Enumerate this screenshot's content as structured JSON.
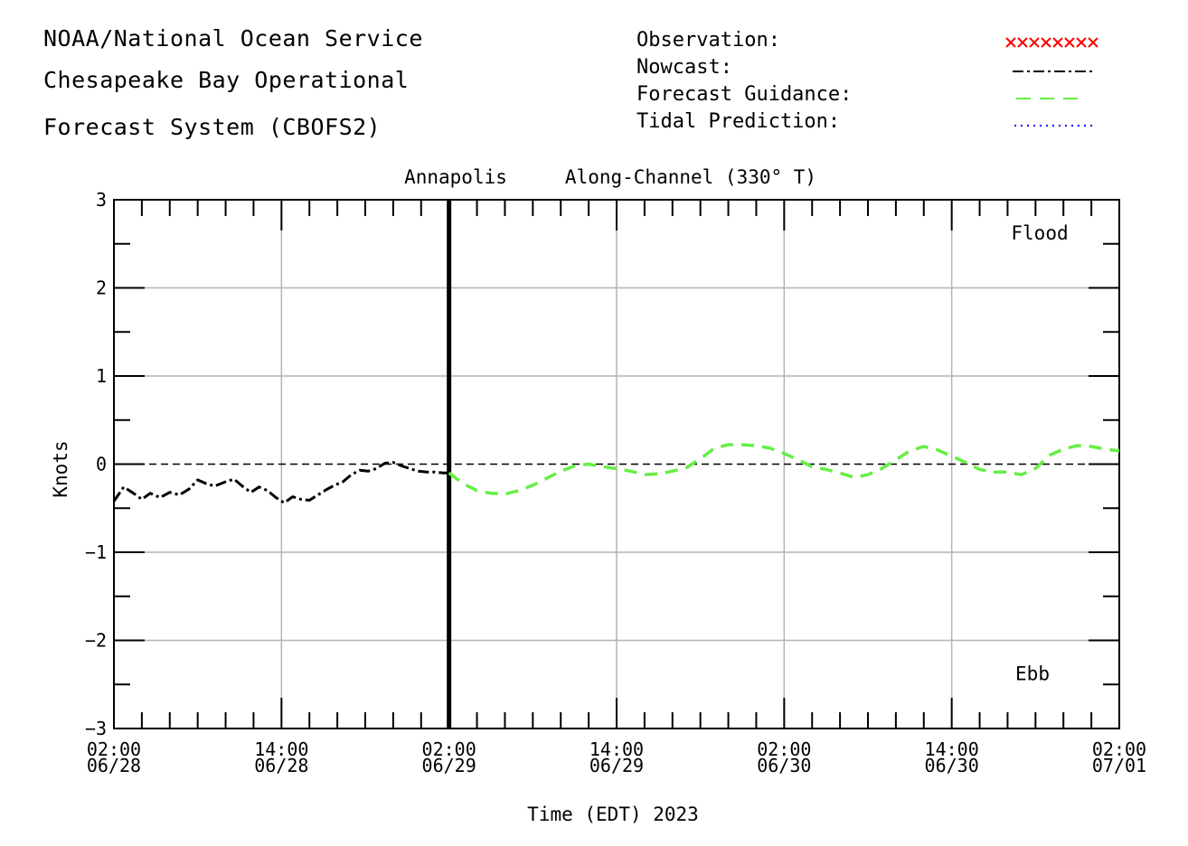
{
  "header": {
    "line1": "NOAA/National Ocean Service",
    "line2": "Chesapeake Bay Operational",
    "line3": "Forecast System (CBOFS2)"
  },
  "legend": [
    {
      "label": "Observation:",
      "style": "cross",
      "color": "#ff0000"
    },
    {
      "label": "Nowcast:",
      "style": "dash-dot",
      "color": "#000000"
    },
    {
      "label": "Forecast Guidance:",
      "style": "dashed",
      "color": "#66ee44"
    },
    {
      "label": "Tidal Prediction:",
      "style": "dotted",
      "color": "#0000ff"
    }
  ],
  "chart_data": {
    "type": "line",
    "title": "Annapolis",
    "subtitle": "Along-Channel (330° T)",
    "xlabel": "Time (EDT) 2023",
    "ylabel": "Knots",
    "ylim": [
      -3,
      3
    ],
    "xlim_hours": [
      0,
      72
    ],
    "x_unit": "hours after 02:00 06/28",
    "x_ticks": [
      {
        "hour": 0,
        "time": "02:00",
        "date": "06/28"
      },
      {
        "hour": 12,
        "time": "14:00",
        "date": "06/28"
      },
      {
        "hour": 24,
        "time": "02:00",
        "date": "06/29"
      },
      {
        "hour": 36,
        "time": "14:00",
        "date": "06/29"
      },
      {
        "hour": 48,
        "time": "02:00",
        "date": "06/30"
      },
      {
        "hour": 60,
        "time": "14:00",
        "date": "06/30"
      },
      {
        "hour": 72,
        "time": "02:00",
        "date": "07/01"
      }
    ],
    "y_ticks": [
      3,
      2,
      1,
      0,
      -1,
      -2,
      -3
    ],
    "y_tick_labels": [
      "3",
      "2",
      "1",
      "0",
      "−1",
      "−2",
      "−3"
    ],
    "grid": true,
    "annotations": {
      "top": "Flood",
      "bottom": "Ebb"
    },
    "nowcast_forecast_boundary_hour": 24,
    "series": [
      {
        "name": "Nowcast",
        "color": "#000000",
        "x": [
          0,
          0.7,
          1.4,
          2.0,
          2.6,
          3.3,
          4.0,
          4.7,
          5.4,
          6.0,
          6.6,
          7.2,
          8.0,
          8.6,
          9.2,
          9.8,
          10.4,
          11.0,
          11.6,
          12.2,
          12.8,
          13.4,
          14.0,
          14.6,
          15.2,
          15.8,
          16.4,
          17.0,
          17.6,
          18.2,
          18.8,
          19.4,
          20.0,
          20.6,
          21.2,
          21.8,
          22.4,
          23.0,
          23.6,
          24.0
        ],
        "values": [
          -0.42,
          -0.26,
          -0.33,
          -0.4,
          -0.33,
          -0.38,
          -0.32,
          -0.35,
          -0.28,
          -0.18,
          -0.22,
          -0.25,
          -0.2,
          -0.17,
          -0.25,
          -0.32,
          -0.26,
          -0.3,
          -0.38,
          -0.44,
          -0.37,
          -0.4,
          -0.41,
          -0.35,
          -0.29,
          -0.24,
          -0.2,
          -0.12,
          -0.07,
          -0.08,
          -0.05,
          0.01,
          0.02,
          -0.02,
          -0.05,
          -0.08,
          -0.09,
          -0.09,
          -0.1,
          -0.1
        ]
      },
      {
        "name": "Forecast Guidance",
        "color": "#66ee44",
        "x": [
          24,
          25.0,
          26.0,
          27.0,
          28.0,
          29.0,
          30.0,
          31.0,
          32.0,
          33.0,
          34.0,
          35.0,
          36.0,
          37.0,
          38.0,
          39.0,
          40.0,
          41.0,
          42.0,
          43.0,
          44.0,
          45.0,
          46.0,
          47.0,
          48.0,
          49.0,
          50.0,
          51.0,
          52.0,
          53.0,
          54.0,
          55.0,
          56.0,
          57.0,
          58.0,
          59.0,
          60.0,
          61.0,
          62.0,
          63.0,
          64.0,
          65.0,
          66.0,
          67.0,
          68.0,
          69.0,
          70.0,
          71.0,
          72.0
        ],
        "values": [
          -0.1,
          -0.22,
          -0.3,
          -0.33,
          -0.34,
          -0.3,
          -0.24,
          -0.16,
          -0.08,
          -0.02,
          0.0,
          -0.03,
          -0.05,
          -0.08,
          -0.12,
          -0.11,
          -0.08,
          -0.04,
          0.06,
          0.18,
          0.22,
          0.22,
          0.21,
          0.18,
          0.12,
          0.05,
          -0.03,
          -0.06,
          -0.1,
          -0.15,
          -0.12,
          -0.05,
          0.05,
          0.15,
          0.2,
          0.16,
          0.09,
          0.02,
          -0.06,
          -0.09,
          -0.09,
          -0.12,
          -0.05,
          0.1,
          0.17,
          0.21,
          0.2,
          0.17,
          0.15
        ]
      }
    ]
  }
}
